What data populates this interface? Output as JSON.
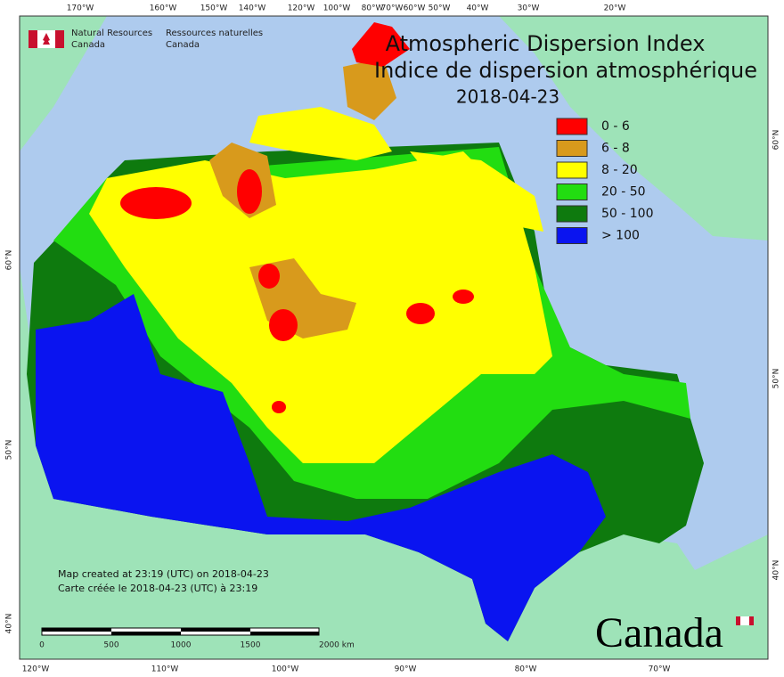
{
  "agency_en": [
    "Natural Resources",
    "Canada"
  ],
  "agency_fr": [
    "Ressources naturelles",
    "Canada"
  ],
  "title": [
    "Atmospheric Dispersion Index",
    "Indice de dispersion atmosphérique"
  ],
  "date": "2018-04-23",
  "legend": [
    {
      "label": "0 - 6",
      "color": "#ff0000"
    },
    {
      "label": "6 - 8",
      "color": "#d89a1c"
    },
    {
      "label": "8 - 20",
      "color": "#ffff00"
    },
    {
      "label": "20 - 50",
      "color": "#22dd11"
    },
    {
      "label": "50 - 100",
      "color": "#0e7a0e"
    },
    {
      "label": "> 100",
      "color": "#0a14f0"
    }
  ],
  "footer": [
    "Map created at 23:19 (UTC) on 2018-04-23",
    "Carte créée le 2018-04-23 (UTC) à 23:19"
  ],
  "scale_bar": [
    "0",
    "500",
    "1000",
    "1500",
    "2000 km"
  ],
  "top_longitudes": [
    "170°W",
    "160°W",
    "150°W",
    "140°W",
    "120°W",
    "100°W",
    "80°W",
    "70°W",
    "60°W",
    "50°W",
    "40°W",
    "30°W",
    "20°W"
  ],
  "bottom_longitudes": [
    "120°W",
    "110°W",
    "100°W",
    "90°W",
    "80°W",
    "70°W"
  ],
  "left_latitudes": [
    "60°N",
    "50°N",
    "40°N"
  ],
  "right_latitudes": [
    "60°N",
    "50°N",
    "40°N"
  ],
  "wordmark": "Canada"
}
